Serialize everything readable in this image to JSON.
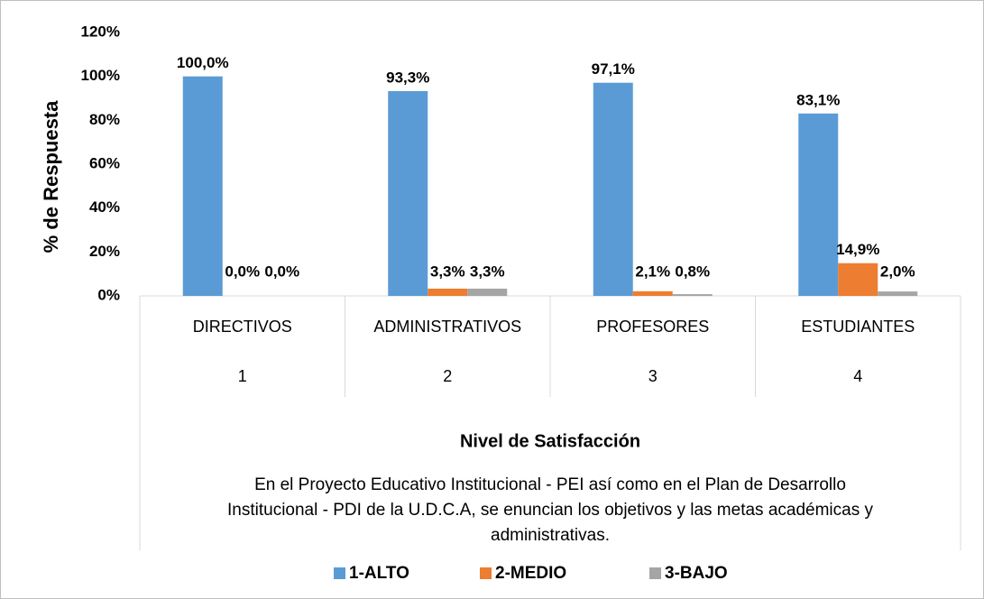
{
  "chart_data": {
    "type": "bar",
    "categories": [
      "DIRECTIVOS",
      "ADMINISTRATIVOS",
      "PROFESORES",
      "ESTUDIANTES"
    ],
    "category_numbers": [
      "1",
      "2",
      "3",
      "4"
    ],
    "xlabel": "Nivel de Satisfacción",
    "ylabel": "% de Respuesta",
    "note_lines": [
      "En el Proyecto Educativo Institucional - PEI así como en el Plan de Desarrollo",
      "Institucional - PDI de la U.D.C.A, se enuncian los objetivos y las metas académicas y",
      "administrativas."
    ],
    "series": [
      {
        "name": "1-ALTO",
        "color": "#5b9bd5",
        "values": [
          100,
          93.3,
          97.1,
          83.1
        ],
        "value_labels": [
          "100,0%",
          "93,3%",
          "97,1%",
          "83,1%"
        ]
      },
      {
        "name": "2-MEDIO",
        "color": "#ed7d31",
        "values": [
          0,
          3.3,
          2.1,
          14.9
        ],
        "value_labels": [
          "0,0%",
          "3,3%",
          "2,1%",
          "14,9%"
        ]
      },
      {
        "name": "3-BAJO",
        "color": "#a5a5a5",
        "values": [
          0,
          3.3,
          0.8,
          2.0
        ],
        "value_labels": [
          "0,0%",
          "3,3%",
          "0,8%",
          "2,0%"
        ]
      }
    ],
    "ylim": [
      0,
      120
    ],
    "yticks": [
      {
        "value": 0,
        "label": "0%"
      },
      {
        "value": 20,
        "label": "20%"
      },
      {
        "value": 40,
        "label": "40%"
      },
      {
        "value": 60,
        "label": "60%"
      },
      {
        "value": 80,
        "label": "80%"
      },
      {
        "value": 100,
        "label": "100%"
      },
      {
        "value": 120,
        "label": "120%"
      }
    ],
    "legend": "bottom"
  }
}
